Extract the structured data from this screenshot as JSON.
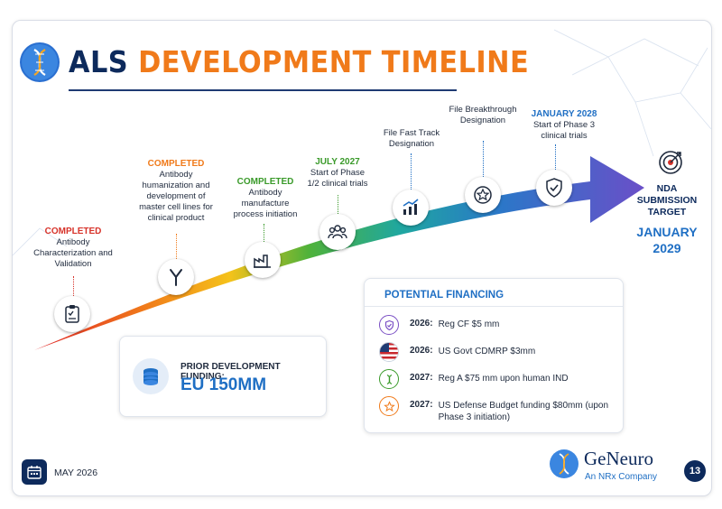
{
  "header": {
    "title_part1": "ALS",
    "title_part2": "DEVELOPMENT TIMELINE"
  },
  "milestones": [
    {
      "status": "COMPLETED",
      "text": "Antibody Characterization and Validation",
      "icon": "clipboard-check-icon",
      "status_color": "#d7332a"
    },
    {
      "status": "COMPLETED",
      "text": "Antibody humanization and development of master cell lines for clinical product",
      "icon": "antibody-icon",
      "status_color": "#f07a1a"
    },
    {
      "status": "COMPLETED",
      "text": "Antibody manufacture process initiation",
      "icon": "factory-icon",
      "status_color": "#3a9a2a"
    },
    {
      "status": "JULY 2027",
      "text": "Start of Phase 1/2 clinical trials",
      "icon": "people-icon",
      "status_color": "#3a9a2a"
    },
    {
      "status": "",
      "text": "File Fast Track Designation",
      "icon": "chart-growth-icon",
      "status_color": "#1f6fc4"
    },
    {
      "status": "",
      "text": "File Breakthrough Designation",
      "icon": "star-badge-icon",
      "status_color": "#1f6fc4"
    },
    {
      "status": "JANUARY 2028",
      "text": "Start of Phase 3 clinical trials",
      "icon": "shield-check-icon",
      "status_color": "#1f6fc4"
    }
  ],
  "nda": {
    "label": "NDA SUBMISSION TARGET",
    "date": "JANUARY 2029",
    "icon": "target-icon"
  },
  "prior_funding": {
    "label": "PRIOR DEVELOPMENT FUNDING:",
    "amount": "EU 150MM",
    "icon": "coins-stack-icon"
  },
  "financing": {
    "title": "POTENTIAL FINANCING",
    "items": [
      {
        "year": "2026:",
        "text": "Reg CF $5 mm",
        "icon": "shield-check-icon",
        "color": "#7a4fc4"
      },
      {
        "year": "2026:",
        "text": "US Govt CDMRP $3mm",
        "icon": "us-flag-icon",
        "color": "#1f3b73"
      },
      {
        "year": "2027:",
        "text": "Reg A $75 mm upon human IND",
        "icon": "dna-icon",
        "color": "#3a9a2a"
      },
      {
        "year": "2027:",
        "text": "US Defense Budget funding $80mm (upon Phase 3 initiation)",
        "icon": "star-icon",
        "color": "#f07a1a"
      }
    ]
  },
  "footer": {
    "date": "MAY 2026",
    "brand_name": "GeNeuro",
    "brand_sub": "An NRx Company",
    "page_number": "13"
  },
  "colors": {
    "navy": "#0d2a5c",
    "orange": "#f07a1a",
    "blue": "#1f6fc4",
    "arrow_gradient": [
      "#e0252a",
      "#f07a1a",
      "#f5c21a",
      "#4fb23a",
      "#1fa7a0",
      "#2a78c8",
      "#6a4fc8"
    ]
  }
}
